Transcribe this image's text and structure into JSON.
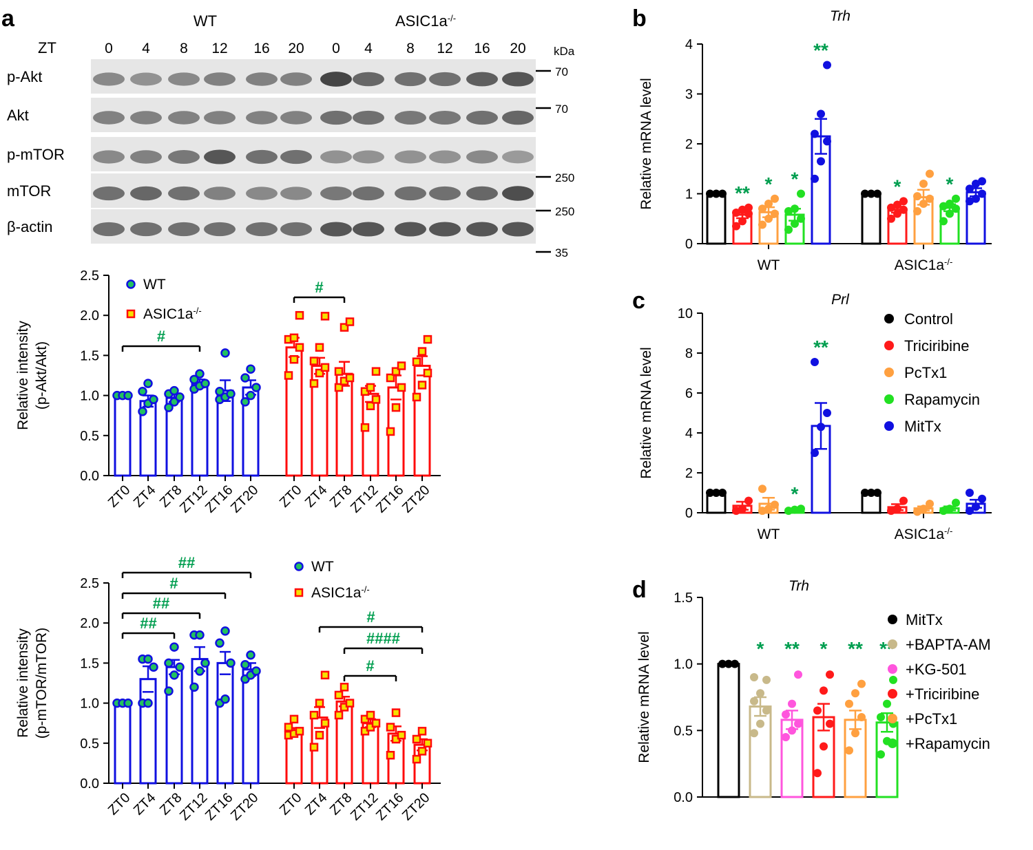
{
  "colors": {
    "wt": "#1010e0",
    "ko": "#ff0a0a",
    "sig": "#009e4f",
    "control": "#000000",
    "triciribine": "#ff1a1a",
    "pctx1": "#ffa040",
    "rapamycin": "#22e022",
    "mittx": "#1010e0",
    "bapta": "#c8b98a",
    "kg501": "#ff55dd",
    "dot_wt_fill": "#22c060",
    "dot_ko_fill": "#f5e000"
  },
  "panels": {
    "a": "a",
    "b": "b",
    "c": "c",
    "d": "d"
  },
  "blot": {
    "wt_label": "WT",
    "ko_label": "ASIC1a",
    "ko_sup": "-/-",
    "zt_label": "ZT",
    "lanes": [
      "0",
      "4",
      "8",
      "12",
      "16",
      "20",
      "0",
      "4",
      "8",
      "12",
      "16",
      "20"
    ],
    "kda_label": "kDa",
    "rows": [
      "p-Akt",
      "Akt",
      "p-mTOR",
      "mTOR",
      "β-actin"
    ],
    "markers": [
      "70",
      "70",
      "250",
      "250",
      "35"
    ]
  },
  "chart_data": [
    {
      "id": "a-akt",
      "type": "bar",
      "ylabel_line1": "Relative intensity",
      "ylabel_line2": "(p-Akt/Akt)",
      "ylim": [
        0,
        2.5
      ],
      "yticks": [
        "0.0",
        "0.5",
        "1.0",
        "1.5",
        "2.0",
        "2.5"
      ],
      "categories": [
        "ZT0",
        "ZT4",
        "ZT8",
        "ZT12",
        "ZT16",
        "ZT20"
      ],
      "legend": [
        "WT",
        "ASIC1a-/-"
      ],
      "series": [
        {
          "name": "WT",
          "means": [
            1.0,
            0.93,
            0.97,
            1.15,
            1.06,
            1.1
          ],
          "sem": [
            0.0,
            0.07,
            0.05,
            0.05,
            0.13,
            0.09
          ],
          "points": [
            [
              1.0,
              1.0,
              1.0
            ],
            [
              0.8,
              0.9,
              0.95,
              1.05,
              1.15
            ],
            [
              0.85,
              0.92,
              0.98,
              1.02,
              1.06
            ],
            [
              1.08,
              1.12,
              1.15,
              1.2,
              1.27
            ],
            [
              0.95,
              0.98,
              1.02,
              1.05,
              1.53
            ],
            [
              0.92,
              1.0,
              1.1,
              1.22,
              1.33
            ]
          ]
        },
        {
          "name": "ASIC1a-/-",
          "means": [
            1.6,
            1.37,
            1.27,
            1.02,
            1.1,
            1.37
          ],
          "sem": [
            0.12,
            0.1,
            0.15,
            0.1,
            0.15,
            0.12
          ],
          "points": [
            [
              1.25,
              1.45,
              1.6,
              1.7,
              1.72,
              2.0
            ],
            [
              1.15,
              1.28,
              1.35,
              1.43,
              1.6,
              1.99
            ],
            [
              1.1,
              1.18,
              1.22,
              1.3,
              1.85,
              1.92
            ],
            [
              0.6,
              0.87,
              0.95,
              1.05,
              1.1,
              1.3
            ],
            [
              0.55,
              0.85,
              1.1,
              1.22,
              1.3,
              1.37
            ],
            [
              0.98,
              1.13,
              1.28,
              1.42,
              1.55,
              1.7
            ]
          ]
        }
      ],
      "annotations": [
        {
          "text": "#",
          "series": "WT",
          "from": "ZT0",
          "to": "ZT12"
        },
        {
          "text": "#",
          "series": "ASIC1a-/-",
          "from": "ZT0",
          "to": "ZT8"
        }
      ]
    },
    {
      "id": "a-mtor",
      "type": "bar",
      "ylabel_line1": "Relative intensity",
      "ylabel_line2": "(p-mTOR/mTOR)",
      "ylim": [
        0,
        2.5
      ],
      "yticks": [
        "0.0",
        "0.5",
        "1.0",
        "1.5",
        "2.0",
        "2.5"
      ],
      "categories": [
        "ZT0",
        "ZT4",
        "ZT8",
        "ZT12",
        "ZT16",
        "ZT20"
      ],
      "legend": [
        "WT",
        "ASIC1a-/-"
      ],
      "series": [
        {
          "name": "WT",
          "means": [
            1.0,
            1.3,
            1.45,
            1.55,
            1.5,
            1.42
          ],
          "sem": [
            0.0,
            0.16,
            0.09,
            0.15,
            0.14,
            0.08
          ],
          "points": [
            [
              1.0,
              1.0,
              1.0
            ],
            [
              1.0,
              1.0,
              1.45,
              1.55,
              1.55
            ],
            [
              1.15,
              1.35,
              1.45,
              1.5,
              1.7
            ],
            [
              1.2,
              1.4,
              1.5,
              1.85,
              1.85
            ],
            [
              1.0,
              1.05,
              1.5,
              1.75,
              1.9
            ],
            [
              1.3,
              1.35,
              1.4,
              1.48,
              1.6
            ]
          ]
        },
        {
          "name": "ASIC1a-/-",
          "means": [
            0.65,
            0.82,
            1.02,
            0.75,
            0.62,
            0.48
          ],
          "sem": [
            0.04,
            0.13,
            0.06,
            0.05,
            0.09,
            0.07
          ],
          "points": [
            [
              0.6,
              0.62,
              0.65,
              0.7,
              0.8
            ],
            [
              0.45,
              0.6,
              0.75,
              0.85,
              1.0,
              1.35
            ],
            [
              0.85,
              0.95,
              1.0,
              1.1,
              1.2
            ],
            [
              0.65,
              0.7,
              0.75,
              0.8,
              0.85
            ],
            [
              0.35,
              0.55,
              0.6,
              0.7,
              0.88
            ],
            [
              0.3,
              0.4,
              0.5,
              0.55,
              0.65
            ]
          ]
        }
      ],
      "annotations": [
        {
          "text": "##",
          "series": "WT",
          "from": "ZT0",
          "to": "ZT8"
        },
        {
          "text": "##",
          "series": "WT",
          "from": "ZT0",
          "to": "ZT12"
        },
        {
          "text": "#",
          "series": "WT",
          "from": "ZT0",
          "to": "ZT16"
        },
        {
          "text": "##",
          "series": "WT",
          "from": "ZT0",
          "to": "ZT20"
        },
        {
          "text": "#",
          "series": "ASIC1a-/-",
          "from": "ZT8",
          "to": "ZT16"
        },
        {
          "text": "####",
          "series": "ASIC1a-/-",
          "from": "ZT8",
          "to": "ZT20"
        },
        {
          "text": "#",
          "series": "ASIC1a-/-",
          "from": "ZT4",
          "to": "ZT20"
        }
      ]
    },
    {
      "id": "b",
      "type": "bar",
      "title": "Trh",
      "ylabel": "Relative mRNA level",
      "ylim": [
        0,
        4
      ],
      "yticks": [
        "0",
        "1",
        "2",
        "3",
        "4"
      ],
      "groups": [
        "WT",
        "ASIC1a-/-"
      ],
      "treatments": [
        "Control",
        "Triciribine",
        "PcTx1",
        "Rapamycin",
        "MitTx"
      ],
      "means": [
        [
          1.0,
          0.58,
          0.63,
          0.58,
          2.15
        ],
        [
          1.0,
          0.68,
          0.93,
          0.72,
          1.03
        ]
      ],
      "sem": [
        [
          0.0,
          0.07,
          0.1,
          0.12,
          0.35
        ],
        [
          0.0,
          0.06,
          0.15,
          0.07,
          0.08
        ]
      ],
      "points": [
        [
          [
            1.0,
            1.0,
            1.0
          ],
          [
            0.35,
            0.45,
            0.6,
            0.62,
            0.68,
            0.72
          ],
          [
            0.38,
            0.5,
            0.6,
            0.7,
            0.8,
            0.9
          ],
          [
            0.28,
            0.4,
            0.5,
            0.65,
            0.7,
            1.0
          ],
          [
            1.3,
            1.65,
            2.05,
            2.2,
            2.6,
            3.58
          ]
        ],
        [
          [
            1.0,
            1.0,
            1.0
          ],
          [
            0.5,
            0.6,
            0.68,
            0.72,
            0.78,
            0.85
          ],
          [
            0.65,
            0.8,
            0.9,
            0.95,
            1.2,
            1.4
          ],
          [
            0.45,
            0.6,
            0.7,
            0.75,
            0.8,
            0.9
          ],
          [
            0.85,
            0.9,
            1.0,
            1.1,
            1.2,
            1.25
          ]
        ]
      ],
      "stars": [
        [
          "",
          "**",
          "*",
          "*",
          "**"
        ],
        [
          "",
          "*",
          "",
          "*",
          ""
        ]
      ]
    },
    {
      "id": "c",
      "type": "bar",
      "title": "Prl",
      "ylabel": "Relative mRNA level",
      "ylim": [
        0,
        10
      ],
      "yticks": [
        "0",
        "2",
        "4",
        "6",
        "8",
        "10"
      ],
      "groups": [
        "WT",
        "ASIC1a-/-"
      ],
      "treatments": [
        "Control",
        "Triciribine",
        "PcTx1",
        "Rapamycin",
        "MitTx"
      ],
      "legend": [
        "Control",
        "Triciribine",
        "PcTx1",
        "Rapamycin",
        "MitTx"
      ],
      "means": [
        [
          1.0,
          0.35,
          0.45,
          0.15,
          4.35
        ],
        [
          1.0,
          0.28,
          0.22,
          0.22,
          0.45
        ]
      ],
      "sem": [
        [
          0.0,
          0.2,
          0.3,
          0.05,
          1.15
        ],
        [
          0.0,
          0.15,
          0.1,
          0.1,
          0.2
        ]
      ],
      "points": [
        [
          [
            1.0,
            1.0,
            1.0
          ],
          [
            0.1,
            0.2,
            0.6
          ],
          [
            0.1,
            0.2,
            0.4,
            1.2
          ],
          [
            0.1,
            0.15,
            0.2
          ],
          [
            3.0,
            4.3,
            5.0,
            7.55
          ]
        ],
        [
          [
            1.0,
            1.0,
            1.0
          ],
          [
            0.1,
            0.2,
            0.6
          ],
          [
            0.05,
            0.2,
            0.45
          ],
          [
            0.1,
            0.2,
            0.5
          ],
          [
            0.1,
            0.3,
            0.7,
            1.0
          ]
        ]
      ],
      "stars": [
        [
          "",
          "",
          "",
          "*",
          "**"
        ],
        [
          "",
          "",
          "",
          "",
          ""
        ]
      ]
    },
    {
      "id": "d",
      "type": "bar",
      "title": "Trh",
      "ylabel": "Relative mRNA level",
      "ylim": [
        0,
        1.5
      ],
      "yticks": [
        "0.0",
        "0.5",
        "1.0",
        "1.5"
      ],
      "categories": [
        "MitTx",
        "+BAPTA-AM",
        "+KG-501",
        "+Triciribine",
        "+PcTx1",
        "+Rapamycin"
      ],
      "legend": [
        "MitTx",
        "+BAPTA-AM",
        "+KG-501",
        "+Triciribine",
        "+PcTx1",
        "+Rapamycin"
      ],
      "means": [
        1.0,
        0.68,
        0.58,
        0.6,
        0.58,
        0.56
      ],
      "sem": [
        0.0,
        0.07,
        0.07,
        0.1,
        0.07,
        0.07
      ],
      "points": [
        [
          1.0,
          1.0,
          1.0
        ],
        [
          0.48,
          0.55,
          0.65,
          0.72,
          0.78,
          0.88,
          0.9
        ],
        [
          0.45,
          0.5,
          0.55,
          0.62,
          0.7,
          0.92
        ],
        [
          0.18,
          0.38,
          0.55,
          0.65,
          0.8,
          0.92
        ],
        [
          0.35,
          0.48,
          0.6,
          0.7,
          0.78,
          0.85
        ],
        [
          0.32,
          0.42,
          0.55,
          0.6,
          0.7,
          0.88
        ]
      ],
      "stars": [
        "",
        "*",
        "**",
        "*",
        "**",
        "**"
      ]
    }
  ]
}
